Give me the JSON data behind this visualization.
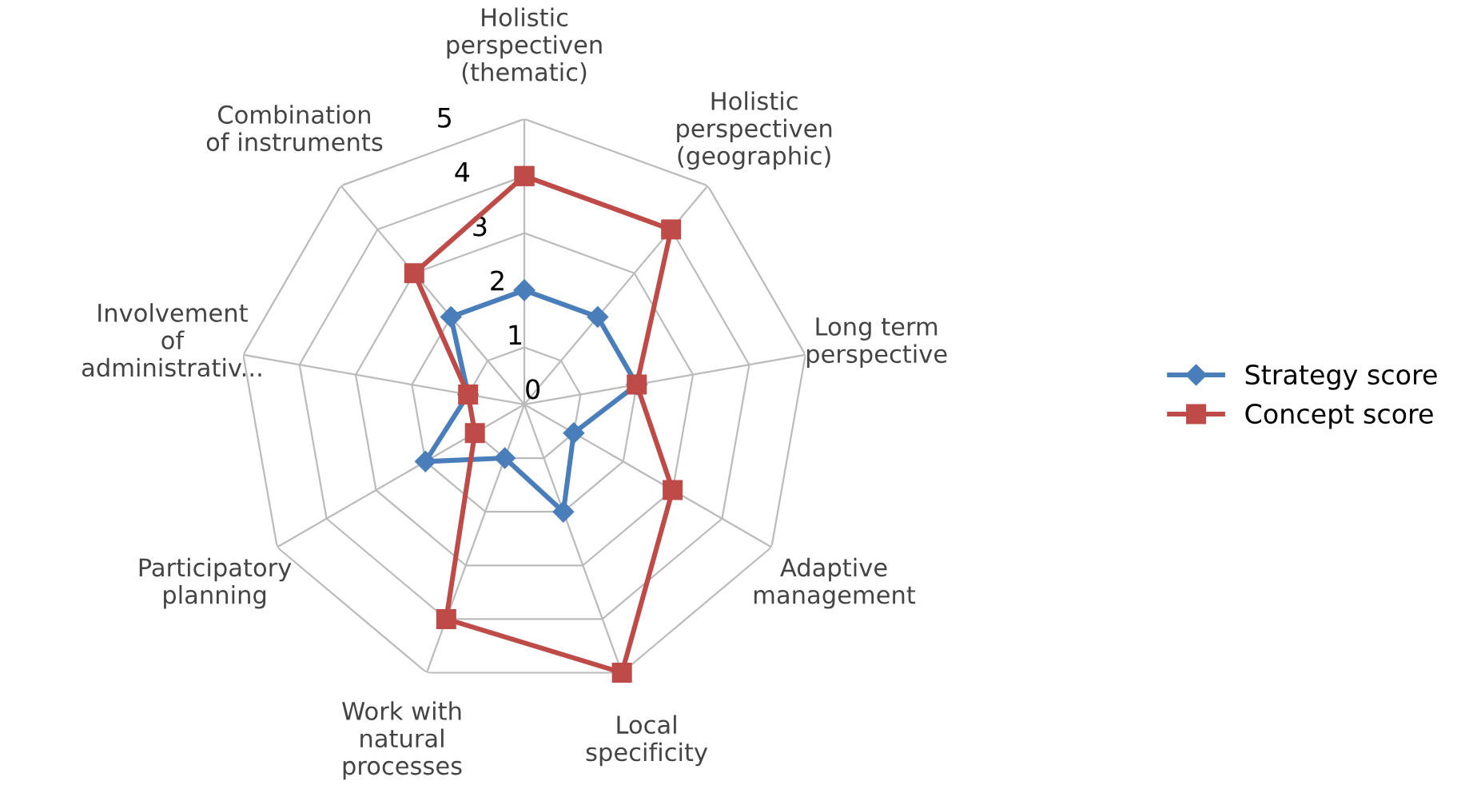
{
  "chart_data": {
    "type": "radar",
    "categories": [
      "Holistic\nperspectiven\n(thematic)",
      "Holistic\nperspectiven\n(geographic)",
      "Long term\nperspective",
      "Adaptive\nmanagement",
      "Local\nspecificity",
      "Work with\nnatural\nprocesses",
      "Participatory\nplanning",
      "Involvement\nof\nadministrativ...",
      "Combination\nof instruments"
    ],
    "series": [
      {
        "name": "Strategy score",
        "color": "#4a7ebb",
        "values": [
          2,
          2,
          2,
          1,
          2,
          1,
          2,
          1,
          2
        ]
      },
      {
        "name": "Concept score",
        "color": "#be4b48",
        "values": [
          4,
          4,
          2,
          3,
          5,
          4,
          1,
          1,
          3
        ]
      }
    ],
    "ylim": [
      0,
      5
    ],
    "yticks": [
      0,
      1,
      2,
      3,
      4,
      5
    ],
    "grid": true,
    "legend": "right",
    "marker": [
      "diamond",
      "square"
    ]
  }
}
